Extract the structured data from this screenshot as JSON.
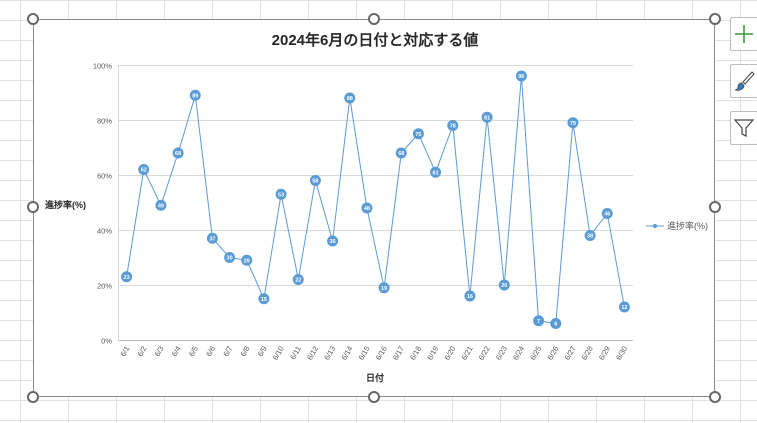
{
  "chart_data": {
    "type": "line",
    "title": "2024年6月の日付と対応する値",
    "xlabel": "日付",
    "ylabel": "進捗率(%)",
    "ylim": [
      0,
      100
    ],
    "yticks": [
      "0%",
      "20%",
      "40%",
      "60%",
      "80%",
      "100%"
    ],
    "grid": true,
    "legend_position": "right",
    "categories": [
      "6/1",
      "6/2",
      "6/3",
      "6/4",
      "6/5",
      "6/6",
      "6/7",
      "6/8",
      "6/9",
      "6/10",
      "6/11",
      "6/12",
      "6/13",
      "6/14",
      "6/15",
      "6/16",
      "6/17",
      "6/18",
      "6/19",
      "6/20",
      "6/21",
      "6/22",
      "6/23",
      "6/24",
      "6/25",
      "6/26",
      "6/27",
      "6/28",
      "6/29",
      "6/30"
    ],
    "series": [
      {
        "name": "進捗率(%)",
        "color": "#5b9bd5",
        "values": [
          23,
          62,
          49,
          68,
          89,
          37,
          30,
          29,
          15,
          53,
          22,
          58,
          36,
          88,
          48,
          19,
          68,
          75,
          61,
          78,
          16,
          81,
          20,
          96,
          7,
          6,
          79,
          38,
          46,
          12
        ]
      }
    ]
  },
  "toolbar": {
    "add_element_icon": "plus-icon",
    "style_icon": "paintbrush-icon",
    "filter_icon": "funnel-icon"
  }
}
